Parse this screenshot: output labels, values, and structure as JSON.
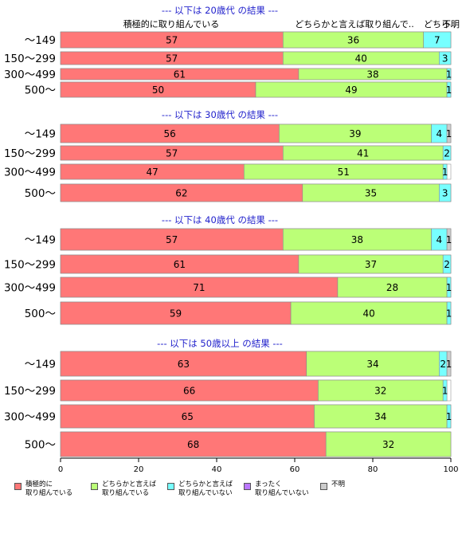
{
  "chart_data": {
    "type": "bar",
    "orientation": "horizontal",
    "stacked": true,
    "xlim": [
      0,
      100
    ],
    "x_ticks": [
      "0",
      "20",
      "40",
      "60",
      "80",
      "100"
    ],
    "header_labels": [
      "積極的に取り組んでいる",
      "どちらかと言えば取り組んで..",
      "どちら..",
      "不明"
    ],
    "series_colors": [
      "#ff7777",
      "#bbff77",
      "#77ffff",
      "#bb77ff",
      "#cccccc"
    ],
    "legend": [
      {
        "label": "積極的に\n取り組んでいる",
        "color": "#ff7777"
      },
      {
        "label": "どちらかと言えば\n取り組んでいる",
        "color": "#bbff77"
      },
      {
        "label": "どちらかと言えば\n取り組んでいない",
        "color": "#77ffff"
      },
      {
        "label": "まったく\n取り組んでいない",
        "color": "#bb77ff"
      },
      {
        "label": "不明",
        "color": "#cccccc"
      }
    ],
    "groups": [
      {
        "title": "--- 以下は 20歳代 の結果 ---",
        "rows": [
          {
            "label": "〜149",
            "values": [
              57,
              36,
              7,
              0,
              0
            ]
          },
          {
            "label": "150〜299",
            "values": [
              57,
              40,
              3,
              0,
              0
            ]
          },
          {
            "label": "300〜499",
            "values": [
              61,
              38,
              1,
              0,
              0
            ]
          },
          {
            "label": "500〜",
            "values": [
              50,
              49,
              1,
              0,
              0
            ]
          }
        ]
      },
      {
        "title": "--- 以下は 30歳代 の結果 ---",
        "rows": [
          {
            "label": "〜149",
            "values": [
              56,
              39,
              4,
              0,
              1
            ]
          },
          {
            "label": "150〜299",
            "values": [
              57,
              41,
              2,
              0,
              0
            ]
          },
          {
            "label": "300〜499",
            "values": [
              47,
              51,
              1,
              0,
              0
            ]
          },
          {
            "label": "500〜",
            "values": [
              62,
              35,
              3,
              0,
              0
            ]
          }
        ]
      },
      {
        "title": "--- 以下は 40歳代 の結果 ---",
        "rows": [
          {
            "label": "〜149",
            "values": [
              57,
              38,
              4,
              0,
              1
            ]
          },
          {
            "label": "150〜299",
            "values": [
              61,
              37,
              2,
              0,
              0
            ]
          },
          {
            "label": "300〜499",
            "values": [
              71,
              28,
              1,
              0,
              0
            ]
          },
          {
            "label": "500〜",
            "values": [
              59,
              40,
              1,
              0,
              0
            ]
          }
        ]
      },
      {
        "title": "--- 以下は 50歳以上 の結果 ---",
        "rows": [
          {
            "label": "〜149",
            "values": [
              63,
              34,
              2,
              0,
              1
            ]
          },
          {
            "label": "150〜299",
            "values": [
              66,
              32,
              1,
              0,
              0
            ]
          },
          {
            "label": "300〜499",
            "values": [
              65,
              34,
              1,
              0,
              0
            ]
          },
          {
            "label": "500〜",
            "values": [
              68,
              32,
              0,
              0,
              0
            ]
          }
        ]
      }
    ]
  }
}
